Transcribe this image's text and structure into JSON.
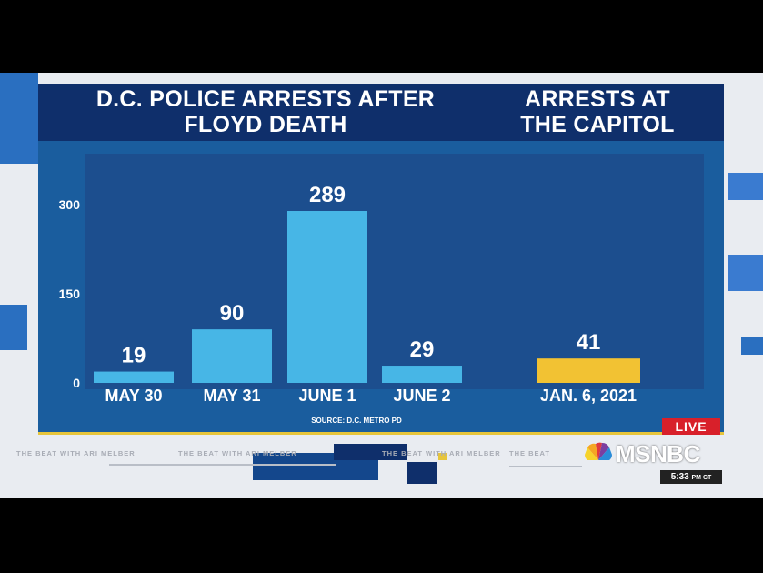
{
  "titles": {
    "left": "D.C. POLICE ARRESTS AFTER\nFLOYD DEATH",
    "right": "ARRESTS AT\nTHE CAPITOL"
  },
  "chart_data": {
    "type": "bar",
    "categories": [
      "MAY 30",
      "MAY 31",
      "JUNE 1",
      "JUNE 2",
      "JAN. 6, 2021"
    ],
    "values": [
      19,
      90,
      289,
      29,
      41
    ],
    "data_labels": [
      "19",
      "90",
      "289",
      "29",
      "41"
    ],
    "y_ticks": [
      0,
      150,
      300
    ],
    "ylim": [
      0,
      330
    ],
    "grid": false,
    "colors": [
      "#47b6e6",
      "#47b6e6",
      "#47b6e6",
      "#47b6e6",
      "#f2c233"
    ]
  },
  "source": "SOURCE: D.C. METRO PD",
  "ticker_text": [
    "THE BEAT WITH ARI MELBER",
    "THE BEAT WITH ARI MELBER",
    "THE BEAT WITH ARI MELBER",
    "THE BEAT"
  ],
  "network": {
    "live_label": "LIVE",
    "logo_text": "MSNBC",
    "time": "5:33",
    "time_suffix": "PM CT"
  },
  "colors": {
    "panel": "#1a5d9e",
    "title_bar": "#0f2f6b",
    "plot_area": "#1c4e8e",
    "bar_blue": "#47b6e6",
    "bar_gold": "#f2c233",
    "live_red": "#d8202a"
  }
}
